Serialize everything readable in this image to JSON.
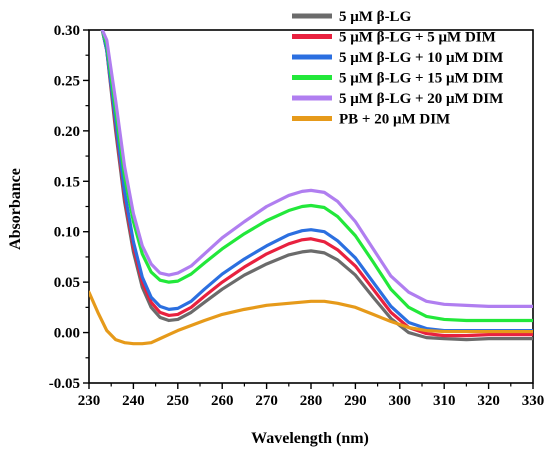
{
  "chart_data": {
    "type": "line",
    "title": "",
    "xlabel": "Wavelength (nm)",
    "ylabel": "Absorbance",
    "xlim": [
      230,
      330
    ],
    "ylim": [
      -0.05,
      0.3
    ],
    "x_ticks": [
      230,
      240,
      250,
      260,
      270,
      280,
      290,
      300,
      310,
      320,
      330
    ],
    "x_tick_labels": [
      "230",
      "240",
      "250",
      "260",
      "270",
      "280",
      "290",
      "300",
      "310",
      "320",
      "330"
    ],
    "y_ticks": [
      -0.05,
      0.0,
      0.05,
      0.1,
      0.15,
      0.2,
      0.25,
      0.3
    ],
    "y_tick_labels": [
      "-0.05",
      "0.00",
      "0.05",
      "0.10",
      "0.15",
      "0.20",
      "0.25",
      "0.30"
    ],
    "grid": false,
    "legend_position": "top-right",
    "series": [
      {
        "name": "5 μM β-LG",
        "color": "#6b6b6b",
        "points": [
          [
            233,
            0.3
          ],
          [
            234,
            0.28
          ],
          [
            236,
            0.2
          ],
          [
            238,
            0.13
          ],
          [
            240,
            0.08
          ],
          [
            242,
            0.045
          ],
          [
            244,
            0.025
          ],
          [
            246,
            0.015
          ],
          [
            248,
            0.012
          ],
          [
            250,
            0.013
          ],
          [
            253,
            0.02
          ],
          [
            256,
            0.03
          ],
          [
            260,
            0.043
          ],
          [
            265,
            0.057
          ],
          [
            270,
            0.068
          ],
          [
            275,
            0.077
          ],
          [
            278,
            0.08
          ],
          [
            280,
            0.081
          ],
          [
            283,
            0.079
          ],
          [
            286,
            0.072
          ],
          [
            290,
            0.057
          ],
          [
            294,
            0.035
          ],
          [
            298,
            0.014
          ],
          [
            302,
            0.0
          ],
          [
            306,
            -0.005
          ],
          [
            310,
            -0.006
          ],
          [
            315,
            -0.007
          ],
          [
            320,
            -0.006
          ],
          [
            325,
            -0.006
          ],
          [
            330,
            -0.006
          ]
        ]
      },
      {
        "name": "5 μM β-LG + 5 μM DIM",
        "color": "#e8213f",
        "points": [
          [
            233,
            0.3
          ],
          [
            234,
            0.28
          ],
          [
            236,
            0.205
          ],
          [
            238,
            0.135
          ],
          [
            240,
            0.085
          ],
          [
            242,
            0.05
          ],
          [
            244,
            0.03
          ],
          [
            246,
            0.02
          ],
          [
            248,
            0.017
          ],
          [
            250,
            0.018
          ],
          [
            253,
            0.025
          ],
          [
            256,
            0.036
          ],
          [
            260,
            0.05
          ],
          [
            265,
            0.065
          ],
          [
            270,
            0.078
          ],
          [
            275,
            0.088
          ],
          [
            278,
            0.092
          ],
          [
            280,
            0.093
          ],
          [
            283,
            0.09
          ],
          [
            286,
            0.082
          ],
          [
            290,
            0.066
          ],
          [
            294,
            0.043
          ],
          [
            298,
            0.02
          ],
          [
            302,
            0.005
          ],
          [
            306,
            -0.001
          ],
          [
            310,
            -0.003
          ],
          [
            315,
            -0.003
          ],
          [
            320,
            -0.002
          ],
          [
            325,
            -0.002
          ],
          [
            330,
            -0.002
          ]
        ]
      },
      {
        "name": "5 μM β-LG + 10 μM DIM",
        "color": "#2b6fe0",
        "points": [
          [
            233,
            0.3
          ],
          [
            234,
            0.28
          ],
          [
            236,
            0.21
          ],
          [
            238,
            0.14
          ],
          [
            240,
            0.09
          ],
          [
            242,
            0.055
          ],
          [
            244,
            0.035
          ],
          [
            246,
            0.026
          ],
          [
            248,
            0.023
          ],
          [
            250,
            0.024
          ],
          [
            253,
            0.031
          ],
          [
            256,
            0.043
          ],
          [
            260,
            0.058
          ],
          [
            265,
            0.073
          ],
          [
            270,
            0.086
          ],
          [
            275,
            0.097
          ],
          [
            278,
            0.101
          ],
          [
            280,
            0.102
          ],
          [
            283,
            0.1
          ],
          [
            286,
            0.091
          ],
          [
            290,
            0.074
          ],
          [
            294,
            0.05
          ],
          [
            298,
            0.026
          ],
          [
            302,
            0.01
          ],
          [
            306,
            0.004
          ],
          [
            310,
            0.002
          ],
          [
            315,
            0.002
          ],
          [
            320,
            0.002
          ],
          [
            325,
            0.002
          ],
          [
            330,
            0.002
          ]
        ]
      },
      {
        "name": "5 μM β-LG + 15 μM DIM",
        "color": "#22e83a",
        "points": [
          [
            233,
            0.3
          ],
          [
            234,
            0.285
          ],
          [
            236,
            0.22
          ],
          [
            238,
            0.155
          ],
          [
            240,
            0.11
          ],
          [
            242,
            0.078
          ],
          [
            244,
            0.06
          ],
          [
            246,
            0.052
          ],
          [
            248,
            0.05
          ],
          [
            250,
            0.051
          ],
          [
            253,
            0.058
          ],
          [
            256,
            0.069
          ],
          [
            260,
            0.083
          ],
          [
            265,
            0.098
          ],
          [
            270,
            0.111
          ],
          [
            275,
            0.121
          ],
          [
            278,
            0.125
          ],
          [
            280,
            0.126
          ],
          [
            283,
            0.124
          ],
          [
            286,
            0.115
          ],
          [
            290,
            0.096
          ],
          [
            294,
            0.07
          ],
          [
            298,
            0.043
          ],
          [
            302,
            0.025
          ],
          [
            306,
            0.016
          ],
          [
            310,
            0.013
          ],
          [
            315,
            0.012
          ],
          [
            320,
            0.012
          ],
          [
            325,
            0.012
          ],
          [
            330,
            0.012
          ]
        ]
      },
      {
        "name": "5 μM β-LG + 20 μM DIM",
        "color": "#b07ef0",
        "points": [
          [
            233,
            0.3
          ],
          [
            234,
            0.29
          ],
          [
            236,
            0.23
          ],
          [
            238,
            0.165
          ],
          [
            240,
            0.118
          ],
          [
            242,
            0.086
          ],
          [
            244,
            0.068
          ],
          [
            246,
            0.059
          ],
          [
            248,
            0.057
          ],
          [
            250,
            0.059
          ],
          [
            253,
            0.066
          ],
          [
            256,
            0.078
          ],
          [
            260,
            0.094
          ],
          [
            265,
            0.11
          ],
          [
            270,
            0.125
          ],
          [
            275,
            0.136
          ],
          [
            278,
            0.14
          ],
          [
            280,
            0.141
          ],
          [
            283,
            0.139
          ],
          [
            286,
            0.13
          ],
          [
            290,
            0.11
          ],
          [
            294,
            0.083
          ],
          [
            298,
            0.056
          ],
          [
            302,
            0.04
          ],
          [
            306,
            0.031
          ],
          [
            310,
            0.028
          ],
          [
            315,
            0.027
          ],
          [
            320,
            0.026
          ],
          [
            325,
            0.026
          ],
          [
            330,
            0.026
          ]
        ]
      },
      {
        "name": "PB + 20 μM DIM",
        "color": "#e69a1a",
        "points": [
          [
            230,
            0.04
          ],
          [
            232,
            0.02
          ],
          [
            234,
            0.002
          ],
          [
            236,
            -0.007
          ],
          [
            238,
            -0.01
          ],
          [
            240,
            -0.011
          ],
          [
            242,
            -0.011
          ],
          [
            244,
            -0.01
          ],
          [
            246,
            -0.006
          ],
          [
            248,
            -0.002
          ],
          [
            250,
            0.002
          ],
          [
            253,
            0.007
          ],
          [
            256,
            0.012
          ],
          [
            260,
            0.018
          ],
          [
            265,
            0.023
          ],
          [
            270,
            0.027
          ],
          [
            275,
            0.029
          ],
          [
            280,
            0.031
          ],
          [
            283,
            0.031
          ],
          [
            286,
            0.029
          ],
          [
            290,
            0.025
          ],
          [
            294,
            0.018
          ],
          [
            298,
            0.011
          ],
          [
            302,
            0.005
          ],
          [
            306,
            0.002
          ],
          [
            310,
            0.001
          ],
          [
            315,
            0.001
          ],
          [
            320,
            0.001
          ],
          [
            325,
            0.001
          ],
          [
            330,
            0.001
          ]
        ]
      }
    ]
  }
}
